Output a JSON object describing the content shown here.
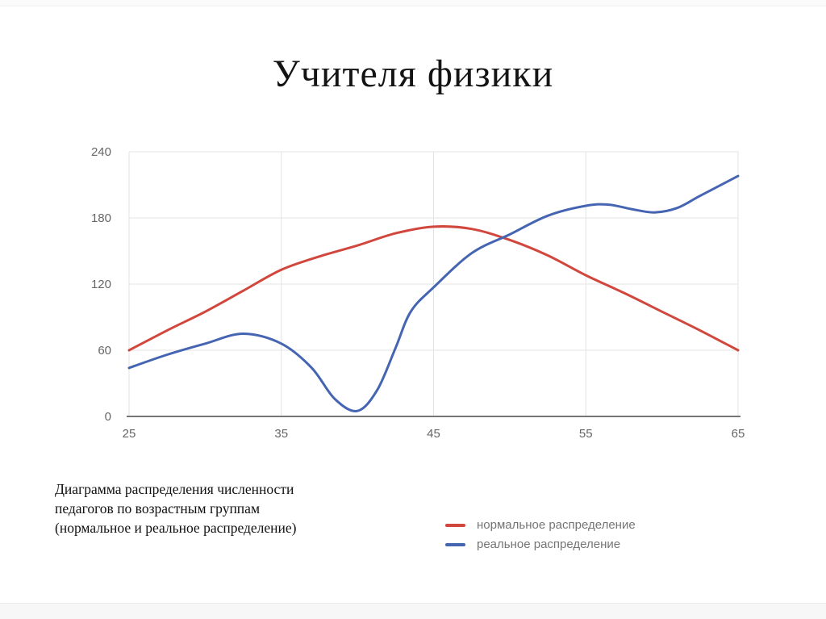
{
  "title": "Учителя физики",
  "caption": "Диаграмма распределения численности\nпедагогов по возрастным группам\n(нормальное и реальное распределение)",
  "colors": {
    "grid": "#e3e3e3",
    "axis": "#757575",
    "tick_text": "#666666",
    "legend_text": "#757575",
    "normal_series": "#d2473d",
    "real_series": "#4565b2"
  },
  "chart_data": {
    "type": "line",
    "title": "Учителя физики",
    "xlabel": "",
    "ylabel": "",
    "xlim": [
      25,
      65
    ],
    "ylim": [
      0,
      240
    ],
    "x_ticks": [
      25,
      35,
      45,
      55,
      65
    ],
    "y_ticks": [
      0,
      60,
      120,
      180,
      240
    ],
    "grid": true,
    "legend_position": "bottom-right",
    "series": [
      {
        "name": "нормальное распределение",
        "color": "#d2473d",
        "points": [
          [
            25,
            60
          ],
          [
            27.5,
            78
          ],
          [
            30,
            95
          ],
          [
            32.5,
            114
          ],
          [
            35,
            133
          ],
          [
            37.5,
            145
          ],
          [
            40,
            155
          ],
          [
            42.5,
            166
          ],
          [
            45,
            172
          ],
          [
            47.5,
            170
          ],
          [
            50,
            160
          ],
          [
            52.5,
            146
          ],
          [
            55,
            128
          ],
          [
            57.5,
            112
          ],
          [
            60,
            95
          ],
          [
            62.5,
            78
          ],
          [
            65,
            60
          ]
        ]
      },
      {
        "name": "реальное распределение",
        "color": "#4565b2",
        "points": [
          [
            25,
            44
          ],
          [
            27.5,
            56
          ],
          [
            30,
            66
          ],
          [
            32.5,
            75
          ],
          [
            35,
            66
          ],
          [
            37,
            44
          ],
          [
            38.5,
            16
          ],
          [
            40,
            5
          ],
          [
            41.3,
            24
          ],
          [
            42.5,
            62
          ],
          [
            43.5,
            95
          ],
          [
            45,
            117
          ],
          [
            47.5,
            148
          ],
          [
            50,
            165
          ],
          [
            52.5,
            182
          ],
          [
            55,
            191
          ],
          [
            56.5,
            192
          ],
          [
            58,
            188
          ],
          [
            59.5,
            185
          ],
          [
            61,
            189
          ],
          [
            62.5,
            200
          ],
          [
            65,
            218
          ]
        ]
      }
    ]
  }
}
